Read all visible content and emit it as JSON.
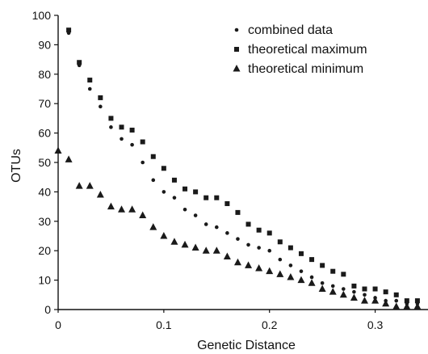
{
  "chart_data": {
    "type": "scatter",
    "title": "",
    "xlabel": "Genetic Distance",
    "ylabel": "OTUs",
    "xlim": [
      0,
      0.35
    ],
    "ylim": [
      0,
      100
    ],
    "x_ticks": [
      0,
      0.1,
      0.2,
      0.3
    ],
    "x_tick_labels": [
      "0",
      "0.1",
      "0.2",
      "0.3"
    ],
    "y_ticks": [
      0,
      10,
      20,
      30,
      40,
      50,
      60,
      70,
      80,
      90,
      100
    ],
    "y_tick_labels": [
      "0",
      "10",
      "20",
      "30",
      "40",
      "50",
      "60",
      "70",
      "80",
      "90",
      "100"
    ],
    "grid": false,
    "legend": "top-right",
    "series": [
      {
        "name": "combined data",
        "marker": "circle",
        "color": "#1a1a1a",
        "x": [
          0.01,
          0.02,
          0.03,
          0.04,
          0.05,
          0.06,
          0.07,
          0.08,
          0.09,
          0.1,
          0.11,
          0.12,
          0.13,
          0.14,
          0.15,
          0.16,
          0.17,
          0.18,
          0.19,
          0.2,
          0.21,
          0.22,
          0.23,
          0.24,
          0.25,
          0.26,
          0.27,
          0.28,
          0.29,
          0.3,
          0.31,
          0.32,
          0.33,
          0.34
        ],
        "y": [
          94,
          83,
          75,
          69,
          62,
          58,
          56,
          50,
          44,
          40,
          38,
          34,
          32,
          29,
          28,
          26,
          24,
          22,
          21,
          20,
          17,
          15,
          13,
          11,
          9,
          8,
          7,
          6,
          5,
          4,
          3,
          3,
          2,
          2
        ]
      },
      {
        "name": "theoretical maximum",
        "marker": "square",
        "color": "#1a1a1a",
        "x": [
          0.01,
          0.02,
          0.03,
          0.04,
          0.05,
          0.06,
          0.07,
          0.08,
          0.09,
          0.1,
          0.11,
          0.12,
          0.13,
          0.14,
          0.15,
          0.16,
          0.17,
          0.18,
          0.19,
          0.2,
          0.21,
          0.22,
          0.23,
          0.24,
          0.25,
          0.26,
          0.27,
          0.28,
          0.29,
          0.3,
          0.31,
          0.32,
          0.33,
          0.34
        ],
        "y": [
          95,
          84,
          78,
          72,
          65,
          62,
          61,
          57,
          52,
          48,
          44,
          41,
          40,
          38,
          38,
          36,
          33,
          29,
          27,
          26,
          23,
          21,
          19,
          17,
          15,
          13,
          12,
          8,
          7,
          7,
          6,
          5,
          3,
          3
        ]
      },
      {
        "name": "theoretical minimum",
        "marker": "triangle",
        "color": "#1a1a1a",
        "x": [
          0,
          0.01,
          0.02,
          0.03,
          0.04,
          0.05,
          0.06,
          0.07,
          0.08,
          0.09,
          0.1,
          0.11,
          0.12,
          0.13,
          0.14,
          0.15,
          0.16,
          0.17,
          0.18,
          0.19,
          0.2,
          0.21,
          0.22,
          0.23,
          0.24,
          0.25,
          0.26,
          0.27,
          0.28,
          0.29,
          0.3,
          0.31,
          0.32,
          0.33,
          0.34
        ],
        "y": [
          54,
          51,
          42,
          42,
          39,
          35,
          34,
          34,
          32,
          28,
          25,
          23,
          22,
          21,
          20,
          20,
          18,
          16,
          15,
          14,
          13,
          12,
          11,
          10,
          9,
          7,
          6,
          5,
          4,
          3,
          3,
          2,
          1,
          1,
          1
        ]
      }
    ]
  }
}
